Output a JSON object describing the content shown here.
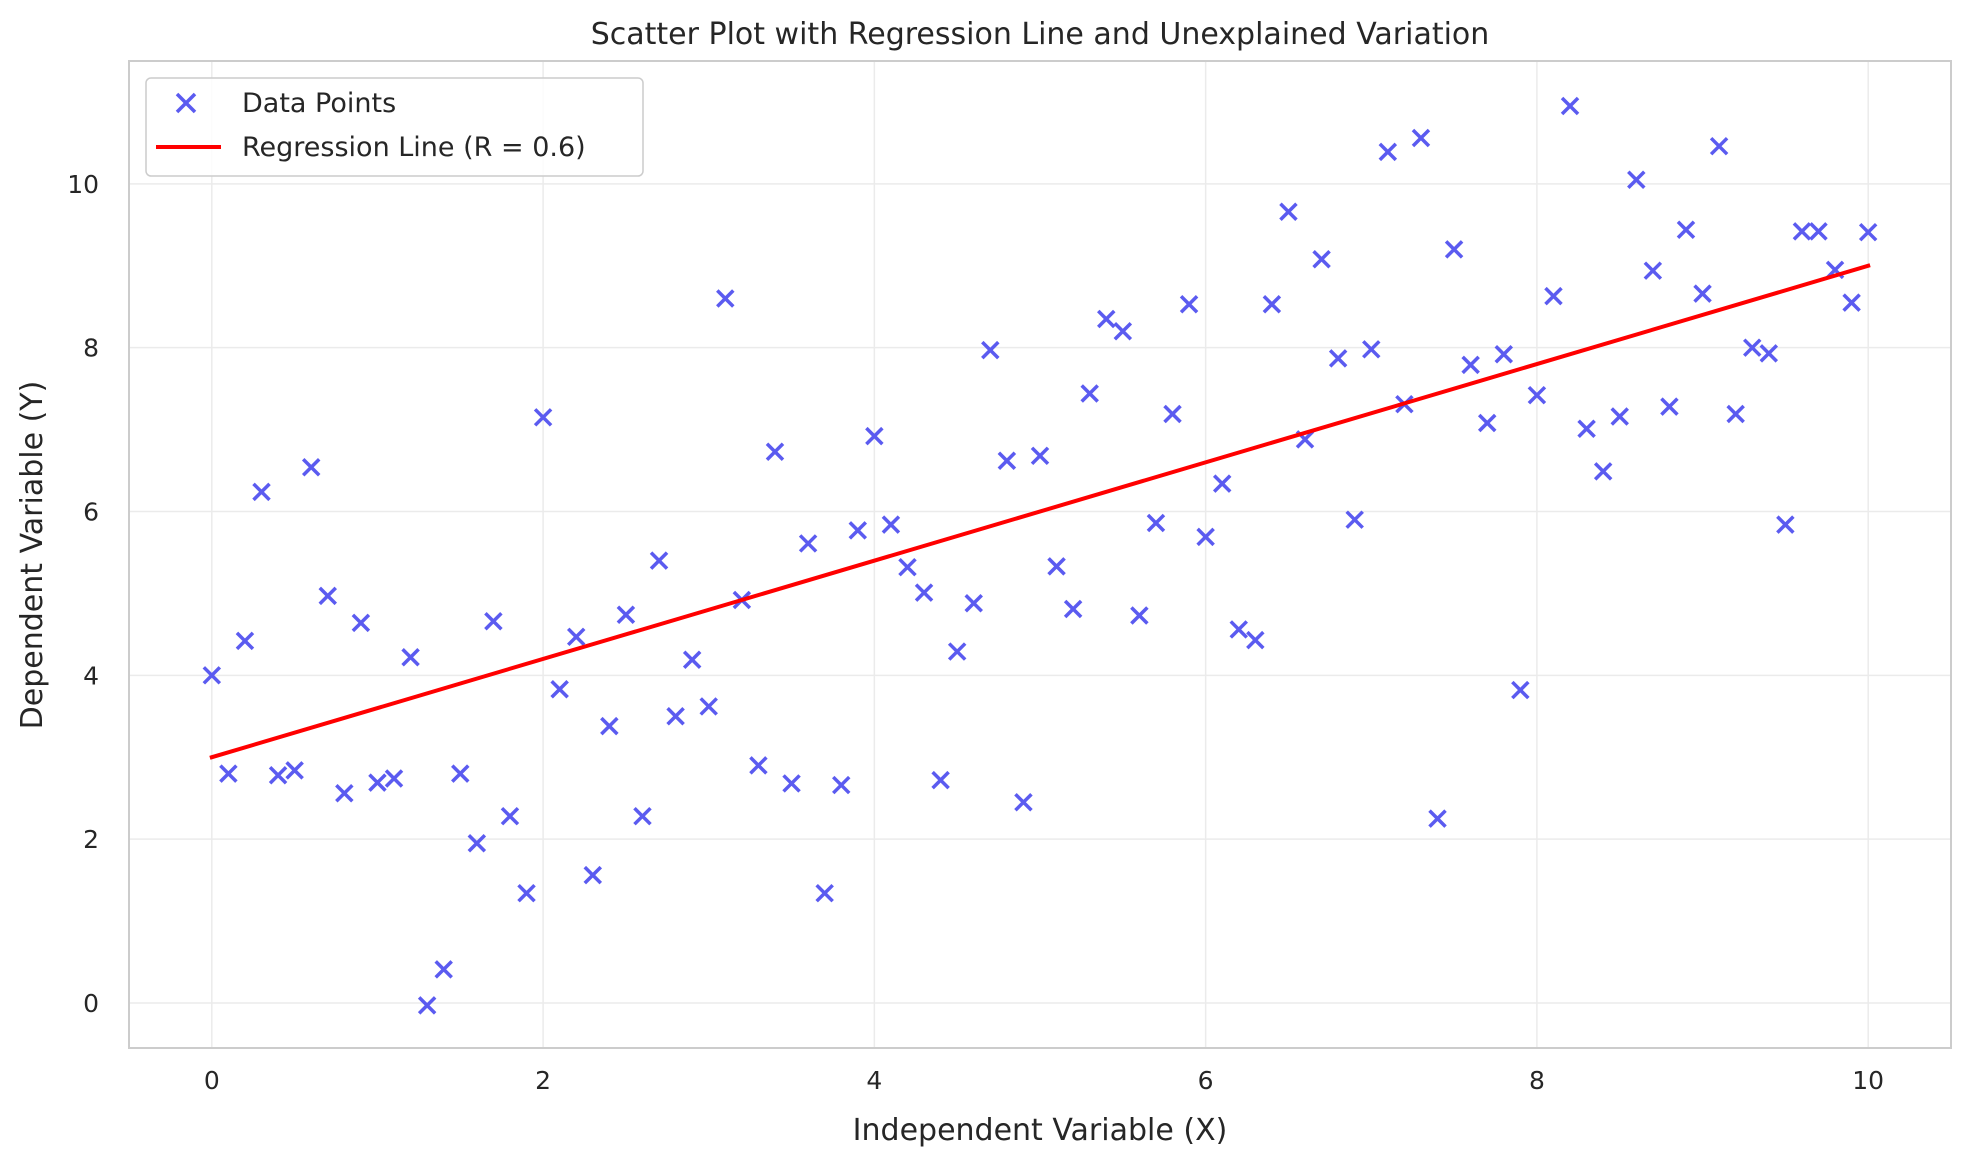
{
  "chart_data": {
    "type": "scatter",
    "title": "Scatter Plot with Regression Line and Unexplained Variation",
    "xlabel": "Independent Variable (X)",
    "ylabel": "Dependent Variable (Y)",
    "xlim": [
      -0.5,
      10.5
    ],
    "ylim": [
      -0.55,
      11.5
    ],
    "xticks": [
      0,
      2,
      4,
      6,
      8,
      10
    ],
    "yticks": [
      0,
      2,
      4,
      6,
      8,
      10
    ],
    "grid": true,
    "legend_position": "top-left",
    "series": [
      {
        "name": "Data Points",
        "type": "scatter",
        "marker": "x",
        "color": "#5b5bf0",
        "x": [
          0.0,
          0.1,
          0.2,
          0.3,
          0.4,
          0.5,
          0.6,
          0.7,
          0.8,
          0.9,
          1.0,
          1.1,
          1.2,
          1.3,
          1.4,
          1.5,
          1.6,
          1.7,
          1.8,
          1.9,
          2.0,
          2.1,
          2.2,
          2.3,
          2.4,
          2.5,
          2.6,
          2.7,
          2.8,
          2.9,
          3.0,
          3.1,
          3.2,
          3.3,
          3.4,
          3.5,
          3.6,
          3.7,
          3.8,
          3.9,
          4.0,
          4.1,
          4.2,
          4.3,
          4.4,
          4.5,
          4.6,
          4.7,
          4.8,
          4.9,
          5.1,
          5.2,
          5.3,
          5.4,
          5.5,
          5.6,
          5.7,
          5.8,
          5.9,
          6.0,
          6.1,
          6.2,
          6.3,
          6.4,
          6.5,
          6.6,
          6.7,
          6.8,
          6.9,
          7.0,
          7.1,
          7.2,
          7.3,
          7.4,
          7.5,
          7.6,
          7.7,
          7.8,
          7.9,
          8.0,
          8.1,
          8.2,
          8.3,
          8.4,
          8.5,
          8.6,
          8.7,
          8.8,
          8.9,
          9.0,
          9.1,
          9.2,
          9.3,
          9.4,
          9.5,
          9.6,
          9.7,
          9.8,
          9.9,
          10.0,
          5.0
        ],
        "y": [
          4.0,
          2.8,
          4.42,
          6.24,
          2.78,
          2.84,
          6.54,
          4.97,
          2.56,
          4.64,
          2.69,
          2.74,
          4.22,
          -0.03,
          0.41,
          2.8,
          1.95,
          4.66,
          2.28,
          1.34,
          7.15,
          3.83,
          4.47,
          1.56,
          3.38,
          4.74,
          2.28,
          5.4,
          3.5,
          4.19,
          3.62,
          8.6,
          4.92,
          2.9,
          6.73,
          2.68,
          5.61,
          1.34,
          2.66,
          5.77,
          6.92,
          5.84,
          5.32,
          5.01,
          2.72,
          4.29,
          4.88,
          7.97,
          6.62,
          2.45,
          5.33,
          4.81,
          7.44,
          8.35,
          8.2,
          4.73,
          5.86,
          7.19,
          8.53,
          5.69,
          6.34,
          4.56,
          4.43,
          8.53,
          9.66,
          6.88,
          9.08,
          7.87,
          5.9,
          7.98,
          10.39,
          7.31,
          10.56,
          2.25,
          9.2,
          7.79,
          7.08,
          7.92,
          3.82,
          7.42,
          8.63,
          10.95,
          7.01,
          6.49,
          7.16,
          10.05,
          8.94,
          7.28,
          9.44,
          8.66,
          10.46,
          7.19,
          8.0,
          7.93,
          5.84,
          9.42,
          9.42,
          8.95,
          8.55,
          9.41,
          6.68
        ]
      },
      {
        "name": "Regression Line (R = 0.6)",
        "type": "line",
        "color": "#ff0000",
        "x": [
          0,
          10
        ],
        "y": [
          3.0,
          9.0
        ]
      }
    ]
  }
}
